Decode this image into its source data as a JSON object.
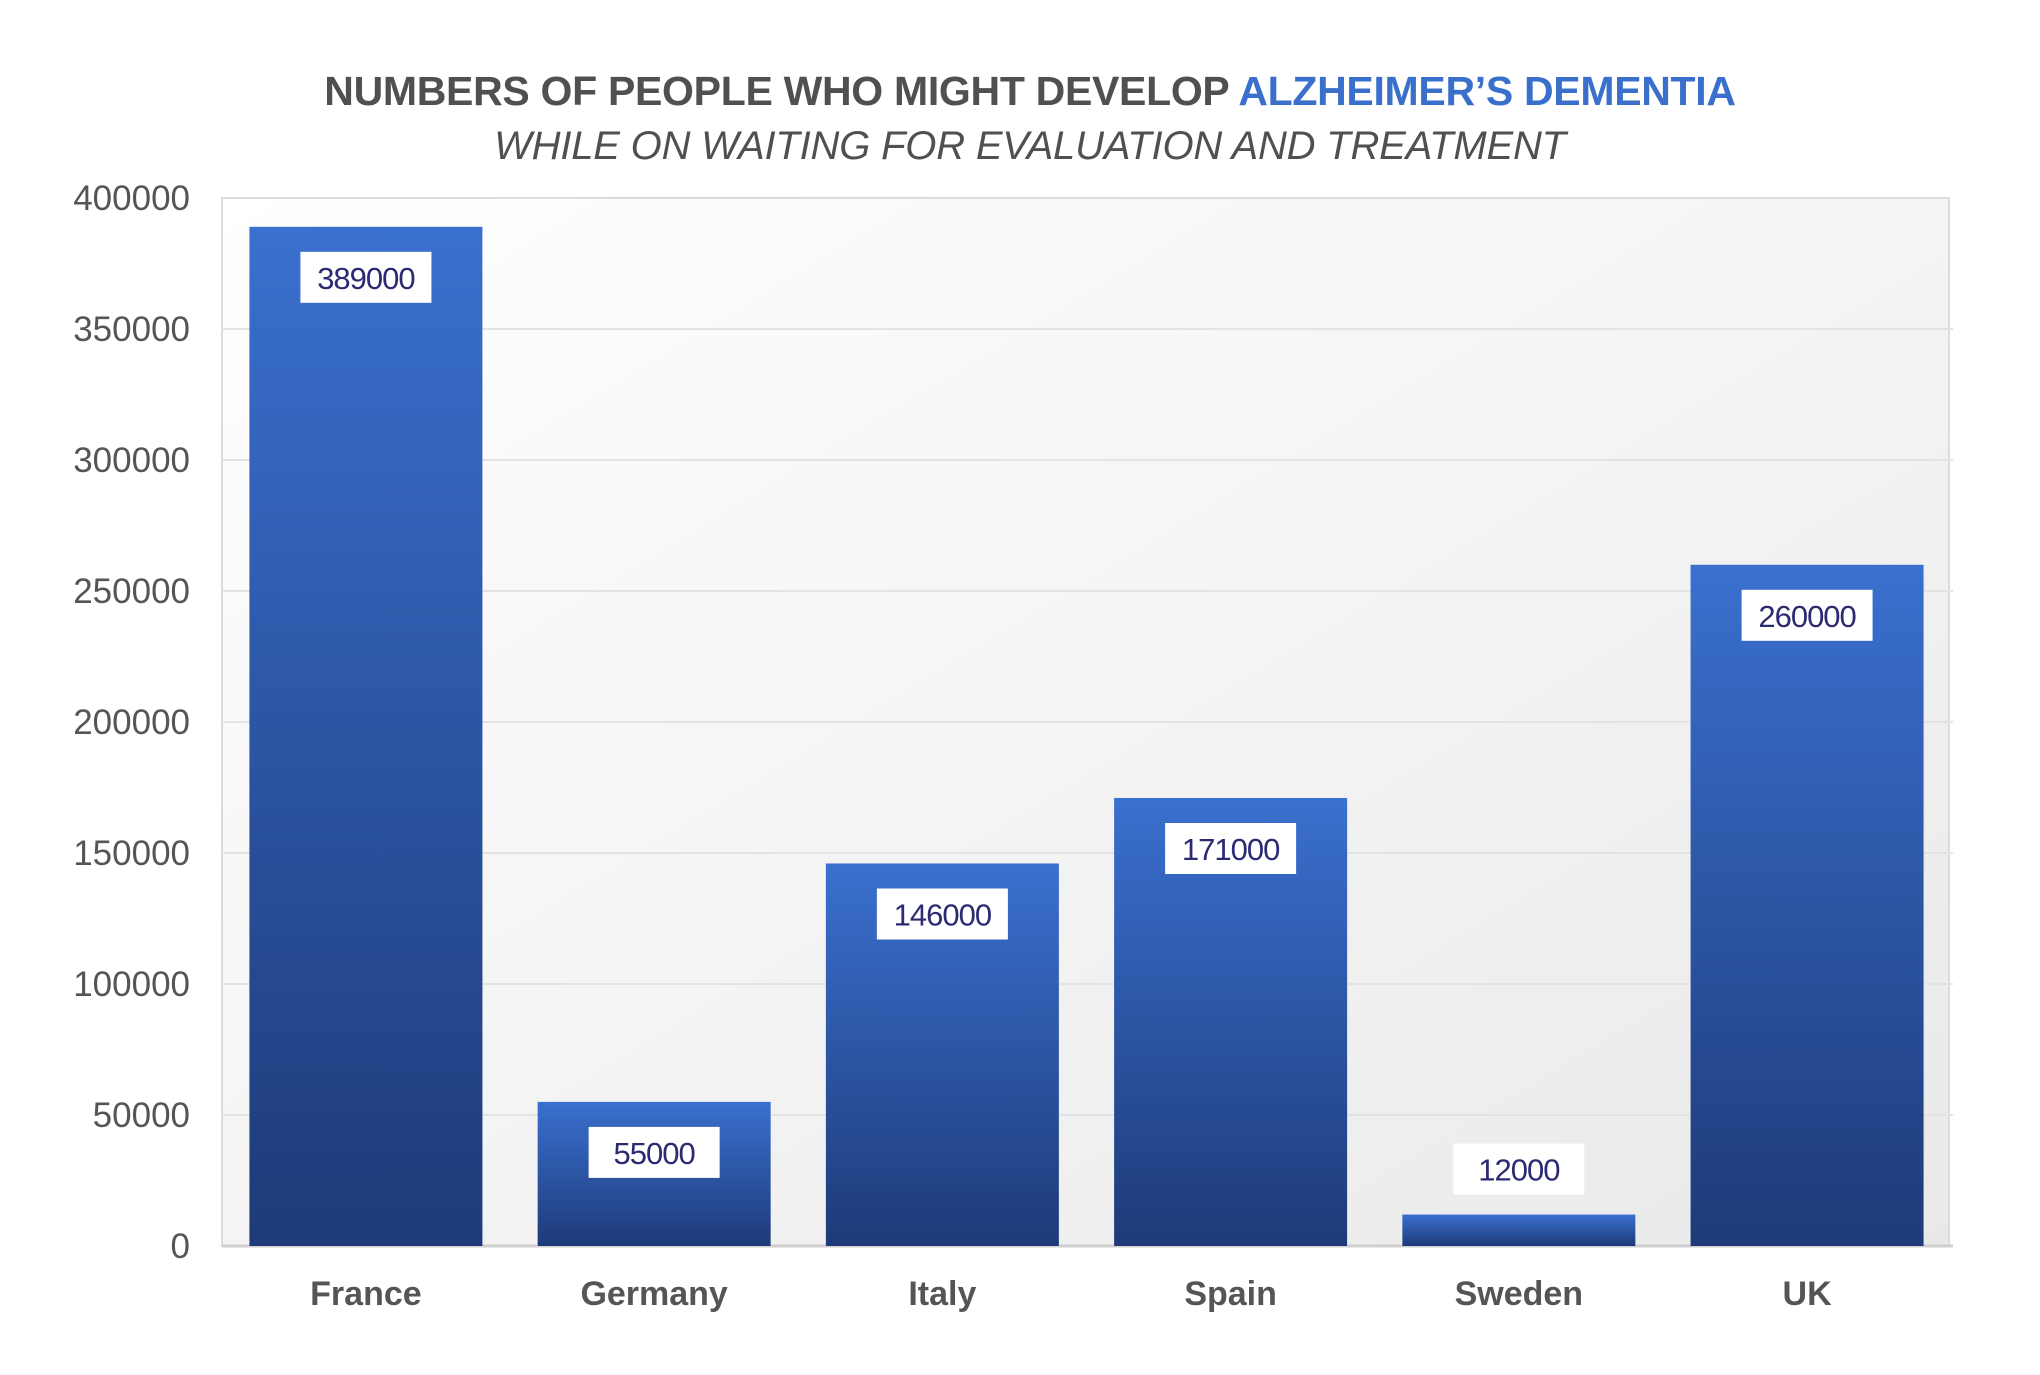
{
  "chart_data": {
    "type": "bar",
    "title_prefix": "NUMBERS OF PEOPLE WHO MIGHT DEVELOP ",
    "title_highlight": "ALZHEIMER’S DEMENTIA",
    "subtitle": "WHILE ON WAITING FOR EVALUATION AND TREATMENT",
    "categories": [
      "France",
      "Germany",
      "Italy",
      "Spain",
      "Sweden",
      "UK"
    ],
    "values": [
      389000,
      55000,
      146000,
      171000,
      12000,
      260000
    ],
    "data_labels": [
      "389000",
      "55000",
      "146000",
      "171000",
      "12000",
      "260000"
    ],
    "xlabel": "",
    "ylabel": "",
    "ylim": [
      0,
      400000
    ],
    "yticks": [
      0,
      50000,
      100000,
      150000,
      200000,
      250000,
      300000,
      350000,
      400000
    ],
    "ytick_labels": [
      "0",
      "50000",
      "100000",
      "150000",
      "200000",
      "250000",
      "300000",
      "350000",
      "400000"
    ],
    "grid": true,
    "legend": "none",
    "colors": {
      "bar_top": "#3a70cf",
      "bar_bottom": "#1e3a78",
      "highlight": "#3a6fcc",
      "title": "#505050",
      "label_text": "#2b2a72"
    }
  }
}
